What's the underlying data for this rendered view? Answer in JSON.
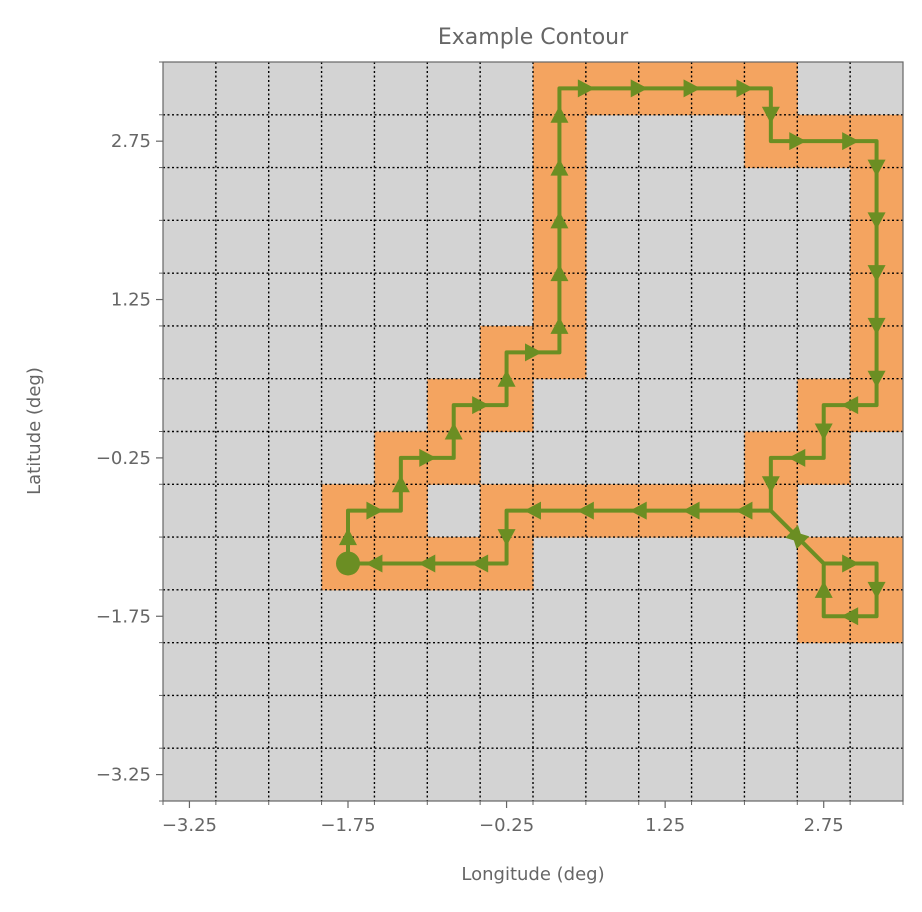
{
  "chart_data": {
    "type": "heatmap",
    "title": "Example Contour",
    "xlabel": "Longitude (deg)",
    "ylabel": "Latitude (deg)",
    "xlim": [
      -3.5,
      3.5
    ],
    "ylim": [
      -3.5,
      3.5
    ],
    "cell_size": 0.5,
    "grid": true,
    "xticks": [
      -3.25,
      -1.75,
      -0.25,
      1.25,
      2.75
    ],
    "yticks": [
      -3.25,
      -1.75,
      -0.25,
      1.25,
      2.75
    ],
    "xtick_labels": [
      "−3.25",
      "−1.75",
      "−0.25",
      "1.25",
      "2.75"
    ],
    "ytick_labels": [
      "−3.25",
      "−1.75",
      "−0.25",
      "1.25",
      "2.75"
    ],
    "colors": {
      "background_cell": "#d3d3d3",
      "highlight_cell": "#f4a460",
      "contour": "#6b8e23",
      "grid": "#000000",
      "text": "#666666"
    },
    "highlighted_cells": [
      [
        0.25,
        3.25
      ],
      [
        0.75,
        3.25
      ],
      [
        1.25,
        3.25
      ],
      [
        1.75,
        3.25
      ],
      [
        2.25,
        3.25
      ],
      [
        0.25,
        2.75
      ],
      [
        2.25,
        2.75
      ],
      [
        2.75,
        2.75
      ],
      [
        3.25,
        2.75
      ],
      [
        0.25,
        2.25
      ],
      [
        3.25,
        2.25
      ],
      [
        0.25,
        1.75
      ],
      [
        3.25,
        1.75
      ],
      [
        0.25,
        1.25
      ],
      [
        3.25,
        1.25
      ],
      [
        -0.25,
        0.75
      ],
      [
        0.25,
        0.75
      ],
      [
        3.25,
        0.75
      ],
      [
        -0.75,
        0.25
      ],
      [
        -0.25,
        0.25
      ],
      [
        2.75,
        0.25
      ],
      [
        3.25,
        0.25
      ],
      [
        -1.25,
        -0.25
      ],
      [
        -0.75,
        -0.25
      ],
      [
        2.25,
        -0.25
      ],
      [
        2.75,
        -0.25
      ],
      [
        -1.75,
        -0.75
      ],
      [
        -1.25,
        -0.75
      ],
      [
        -0.25,
        -0.75
      ],
      [
        0.25,
        -0.75
      ],
      [
        0.75,
        -0.75
      ],
      [
        1.25,
        -0.75
      ],
      [
        1.75,
        -0.75
      ],
      [
        2.25,
        -0.75
      ],
      [
        -1.75,
        -1.25
      ],
      [
        -1.25,
        -1.25
      ],
      [
        -0.75,
        -1.25
      ],
      [
        -0.25,
        -1.25
      ],
      [
        2.75,
        -1.25
      ],
      [
        3.25,
        -1.25
      ],
      [
        2.75,
        -1.75
      ],
      [
        3.25,
        -1.75
      ]
    ],
    "contour_path": {
      "lon": [
        -1.75,
        -1.75,
        -1.25,
        -1.25,
        -0.75,
        -0.75,
        -0.25,
        -0.25,
        0.25,
        0.25,
        0.25,
        0.25,
        0.25,
        0.25,
        0.75,
        1.25,
        1.75,
        2.25,
        2.25,
        2.75,
        3.25,
        3.25,
        3.25,
        3.25,
        3.25,
        3.25,
        2.75,
        2.75,
        2.25,
        2.25,
        2.75,
        3.25,
        3.25,
        2.75,
        2.75,
        2.25,
        1.75,
        1.25,
        0.75,
        0.25,
        -0.25,
        -0.25,
        -0.75,
        -1.25,
        -1.75
      ],
      "lat": [
        -1.25,
        -0.75,
        -0.75,
        -0.25,
        -0.25,
        0.25,
        0.25,
        0.75,
        0.75,
        1.25,
        1.75,
        2.25,
        2.75,
        3.25,
        3.25,
        3.25,
        3.25,
        3.25,
        2.75,
        2.75,
        2.75,
        2.25,
        1.75,
        1.25,
        0.75,
        0.25,
        0.25,
        -0.25,
        -0.25,
        -0.75,
        -1.25,
        -1.25,
        -1.75,
        -1.75,
        -1.25,
        -0.75,
        -0.75,
        -0.75,
        -0.75,
        -0.75,
        -0.75,
        -1.25,
        -1.25,
        -1.25,
        -1.25
      ],
      "start_marker": "circle",
      "direction_markers": "triangle"
    }
  }
}
